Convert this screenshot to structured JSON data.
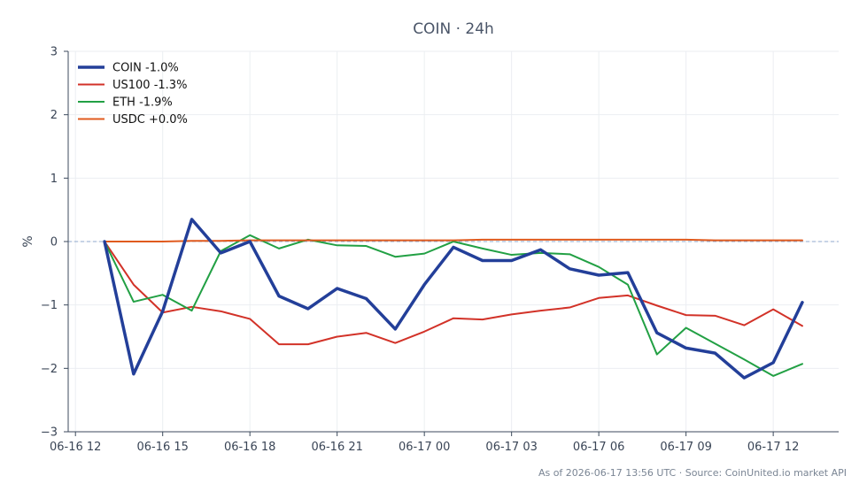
{
  "chart_data": {
    "type": "line",
    "title": "COIN · 24h",
    "ylabel": "%",
    "xlabel": "",
    "ylim": [
      -3,
      3
    ],
    "yticks": [
      -3,
      -2,
      -1,
      0,
      1,
      2,
      3
    ],
    "ytick_labels": [
      "−3",
      "−2",
      "−1",
      "0",
      "1",
      "2",
      "3"
    ],
    "xlim": [
      "2026-06-16 11:45",
      "2026-06-17 14:15"
    ],
    "xticks": [
      "2026-06-16 12:00",
      "2026-06-16 15:00",
      "2026-06-16 18:00",
      "2026-06-16 21:00",
      "2026-06-17 00:00",
      "2026-06-17 03:00",
      "2026-06-17 06:00",
      "2026-06-17 09:00",
      "2026-06-17 12:00"
    ],
    "xtick_labels": [
      "06-16 12",
      "06-16 15",
      "06-16 18",
      "06-16 21",
      "06-17 00",
      "06-17 03",
      "06-17 06",
      "06-17 09",
      "06-17 12"
    ],
    "x": [
      "2026-06-16 13:00",
      "2026-06-16 14:00",
      "2026-06-16 15:00",
      "2026-06-16 16:00",
      "2026-06-16 17:00",
      "2026-06-16 18:00",
      "2026-06-16 19:00",
      "2026-06-16 20:00",
      "2026-06-16 21:00",
      "2026-06-16 22:00",
      "2026-06-16 23:00",
      "2026-06-17 00:00",
      "2026-06-17 01:00",
      "2026-06-17 02:00",
      "2026-06-17 03:00",
      "2026-06-17 04:00",
      "2026-06-17 05:00",
      "2026-06-17 06:00",
      "2026-06-17 07:00",
      "2026-06-17 08:00",
      "2026-06-17 09:00",
      "2026-06-17 10:00",
      "2026-06-17 11:00",
      "2026-06-17 12:00",
      "2026-06-17 13:00"
    ],
    "series": [
      {
        "name": "COIN -1.0%",
        "color": "#233f99",
        "values": [
          0.0,
          -2.09,
          -1.1,
          0.35,
          -0.18,
          0.0,
          -0.86,
          -1.06,
          -0.74,
          -0.9,
          -1.38,
          -0.68,
          -0.09,
          -0.3,
          -0.3,
          -0.13,
          -0.43,
          -0.53,
          -0.49,
          -1.44,
          -1.68,
          -1.76,
          -2.15,
          -1.91,
          -0.96
        ]
      },
      {
        "name": "US100 -1.3%",
        "color": "#d23228",
        "values": [
          0.0,
          -0.68,
          -1.12,
          -1.03,
          -1.1,
          -1.22,
          -1.62,
          -1.62,
          -1.5,
          -1.44,
          -1.6,
          -1.42,
          -1.21,
          -1.23,
          -1.15,
          -1.09,
          -1.04,
          -0.89,
          -0.85,
          -1.01,
          -1.16,
          -1.17,
          -1.32,
          -1.07,
          -1.33
        ]
      },
      {
        "name": "ETH -1.9%",
        "color": "#22a044",
        "values": [
          0.0,
          -0.95,
          -0.84,
          -1.09,
          -0.15,
          0.1,
          -0.11,
          0.03,
          -0.06,
          -0.07,
          -0.24,
          -0.19,
          0.0,
          -0.11,
          -0.21,
          -0.18,
          -0.2,
          -0.4,
          -0.68,
          -1.78,
          -1.36,
          -1.61,
          -1.86,
          -2.12,
          -1.93
        ]
      },
      {
        "name": "USDC +0.0%",
        "color": "#e05a1e",
        "values": [
          0.0,
          0.0,
          0.0,
          0.01,
          0.01,
          0.02,
          0.02,
          0.02,
          0.02,
          0.02,
          0.02,
          0.02,
          0.02,
          0.03,
          0.03,
          0.03,
          0.03,
          0.03,
          0.03,
          0.03,
          0.03,
          0.02,
          0.02,
          0.02,
          0.02
        ]
      }
    ],
    "baseline": 0,
    "grid": true,
    "legend_position": "top-left",
    "footer": "As of 2026-06-17 13:56 UTC · Source: CoinUnited.io market API"
  }
}
